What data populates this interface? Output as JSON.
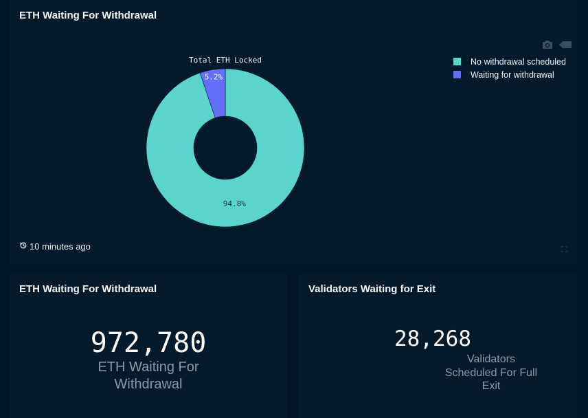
{
  "top_panel": {
    "title": "ETH Waiting For Withdrawal",
    "timestamp": "10 minutes ago"
  },
  "chart_data": {
    "type": "pie",
    "title": "Total ETH Locked",
    "hole": true,
    "labels": [
      "No withdrawal scheduled",
      "Waiting for withdrawal"
    ],
    "values": [
      94.8,
      5.2
    ],
    "text": [
      "94.8%",
      "5.2%"
    ],
    "colors": [
      "#5ad4cc",
      "#646ff8"
    ],
    "legend": "top-right"
  },
  "eth_panel": {
    "title": "ETH Waiting For Withdrawal",
    "value": "972,780",
    "label_line1": "ETH Waiting For",
    "label_line2": "Withdrawal"
  },
  "validators_panel": {
    "title": "Validators Waiting for Exit",
    "value": "28,268",
    "label_line1": "Validators",
    "label_line2": "Scheduled For Full",
    "label_line3": "Exit"
  },
  "colors": {
    "background": "#011526",
    "card": "#021a2c",
    "muted_text": "#8c9aa8"
  },
  "icons": {
    "camera": "camera-icon",
    "autoscale": "autoscale-icon",
    "history": "history-icon",
    "expand": "expand-icon"
  }
}
